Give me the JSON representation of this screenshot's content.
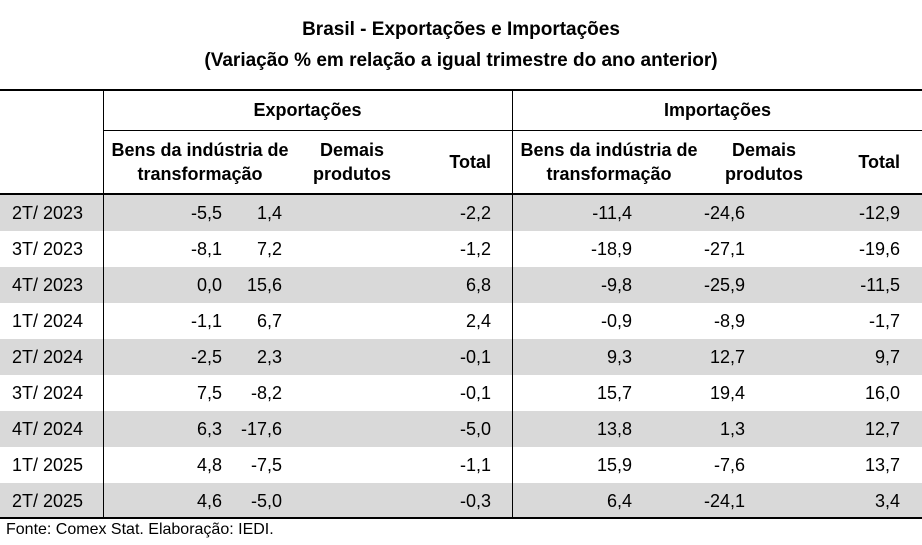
{
  "title_line1": "Brasil - Exportações e Importações",
  "title_line2": "(Variação % em relação a igual trimestre do ano anterior)",
  "groups": {
    "exports": "Exportações",
    "imports": "Importações"
  },
  "columns": {
    "exp_bens_line1": "Bens da indústria de",
    "exp_bens_line2": "transformação",
    "exp_demais_line1": "Demais",
    "exp_demais_line2": "produtos",
    "exp_total": "Total",
    "imp_bens_line1": "Bens da indústria de",
    "imp_bens_line2": "transformação",
    "imp_demais_line1": "Demais",
    "imp_demais_line2": "produtos",
    "imp_total": "Total"
  },
  "footer": "Fonte: Comex Stat. Elaboração: IEDI.",
  "chart_data": {
    "type": "table",
    "title": "Brasil - Exportações e Importações (Variação % em relação a igual trimestre do ano anterior)",
    "columns": [
      "Exportações - Bens da indústria de transformação",
      "Exportações - Demais produtos",
      "Exportações - Total",
      "Importações - Bens da indústria de transformação",
      "Importações - Demais produtos",
      "Importações - Total"
    ],
    "rows": [
      {
        "label": "2T/ 2023",
        "values": [
          "-5,5",
          "1,4",
          "-2,2",
          "-11,4",
          "-24,6",
          "-12,9"
        ]
      },
      {
        "label": "3T/ 2023",
        "values": [
          "-8,1",
          "7,2",
          "-1,2",
          "-18,9",
          "-27,1",
          "-19,6"
        ]
      },
      {
        "label": "4T/ 2023",
        "values": [
          "0,0",
          "15,6",
          "6,8",
          "-9,8",
          "-25,9",
          "-11,5"
        ]
      },
      {
        "label": "1T/ 2024",
        "values": [
          "-1,1",
          "6,7",
          "2,4",
          "-0,9",
          "-8,9",
          "-1,7"
        ]
      },
      {
        "label": "2T/ 2024",
        "values": [
          "-2,5",
          "2,3",
          "-0,1",
          "9,3",
          "12,7",
          "9,7"
        ]
      },
      {
        "label": "3T/ 2024",
        "values": [
          "7,5",
          "-8,2",
          "-0,1",
          "15,7",
          "19,4",
          "16,0"
        ]
      },
      {
        "label": "4T/ 2024",
        "values": [
          "6,3",
          "-17,6",
          "-5,0",
          "13,8",
          "1,3",
          "12,7"
        ]
      },
      {
        "label": "1T/ 2025",
        "values": [
          "4,8",
          "-7,5",
          "-1,1",
          "15,9",
          "-7,6",
          "13,7"
        ]
      },
      {
        "label": "2T/ 2025",
        "values": [
          "4,6",
          "-5,0",
          "-0,3",
          "6,4",
          "-24,1",
          "3,4"
        ]
      }
    ]
  }
}
